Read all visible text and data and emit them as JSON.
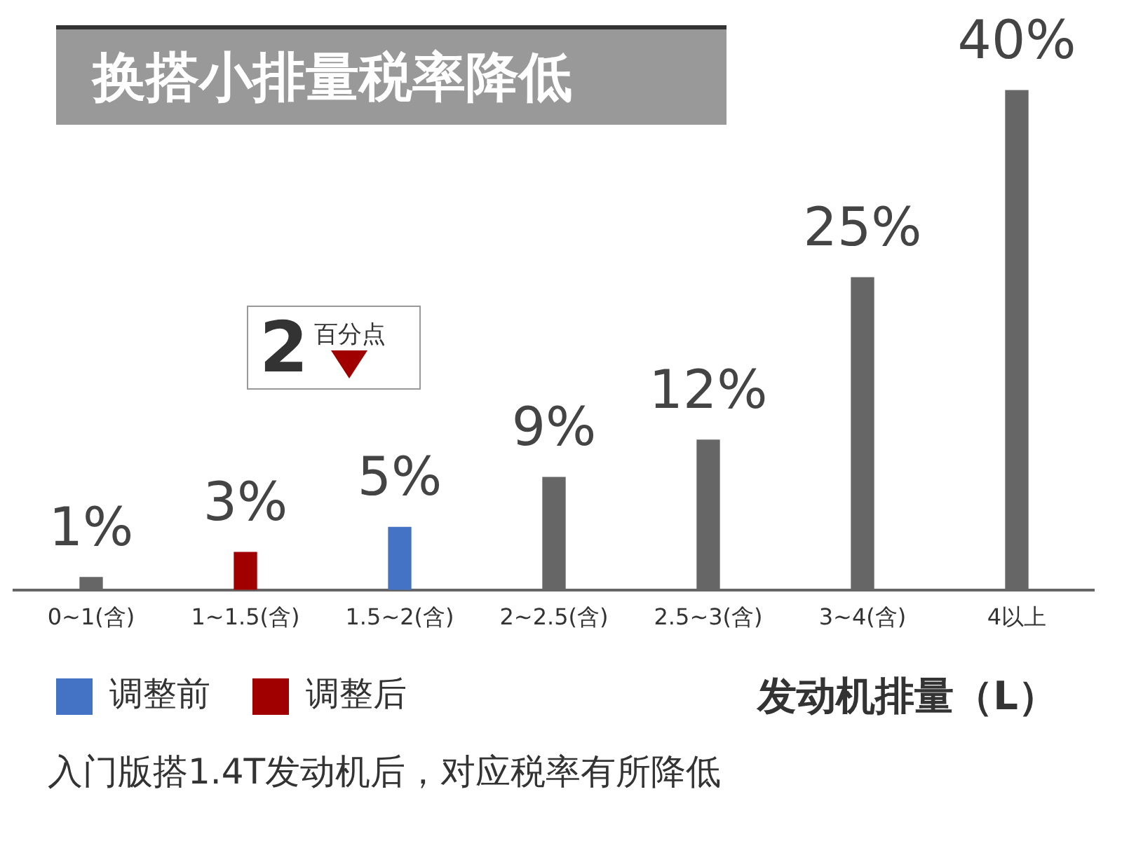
{
  "chart_data": {
    "type": "bar",
    "title": "换搭小排量税率降低",
    "xlabel": "发动机排量（L）",
    "categories": [
      "0~1(含)",
      "1~1.5(含)",
      "1.5~2(含)",
      "2~2.5(含)",
      "2.5~3(含)",
      "3~4(含)",
      "4以上"
    ],
    "stacked": true,
    "legend": "bottom left",
    "grid": false,
    "series": [
      {
        "name": "调整前",
        "color": "#4472c4",
        "values": [
          null,
          null,
          5,
          null,
          null,
          null,
          null
        ],
        "value_labels": [
          null,
          null,
          "5%",
          null,
          null,
          null,
          null
        ]
      },
      {
        "name": "调整后",
        "color": "#a00000",
        "values": [
          null,
          3,
          null,
          null,
          null,
          null,
          null
        ],
        "value_labels": [
          null,
          "3%",
          null,
          null,
          null,
          null,
          null
        ]
      },
      {
        "color": "#666666",
        "values": [
          1,
          null,
          null,
          9,
          12,
          25,
          40
        ],
        "value_labels": [
          "1%",
          null,
          null,
          "9%",
          "12%",
          "25%",
          "40%"
        ]
      }
    ],
    "annotations": [
      "2",
      "百分点",
      "入门版搭1.4T发动机后，对应税率有所降低"
    ]
  }
}
